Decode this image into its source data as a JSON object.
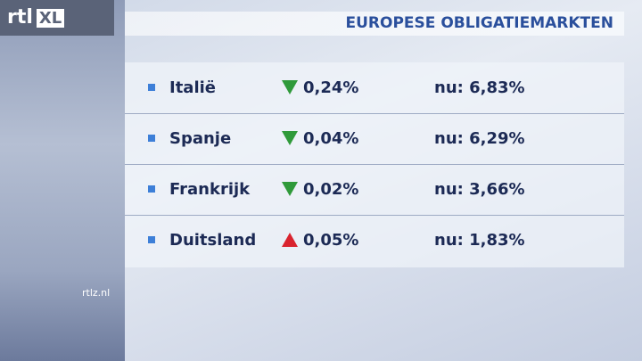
{
  "logo": {
    "left": "rtl",
    "right": "XL"
  },
  "header": {
    "title": "EUROPESE OBLIGATIEMARKTEN"
  },
  "table": {
    "rows": [
      [
        "Italië",
        "0,24%",
        "nu: 6,83%"
      ],
      [
        "Spanje",
        "0,04%",
        "nu: 6,29%"
      ],
      [
        "Frankrijk",
        "0,02%",
        "nu: 3,66%"
      ],
      [
        "Duitsland",
        "0,05%",
        "nu: 1,83%"
      ]
    ]
  },
  "watermark": "rtlz.nl"
}
